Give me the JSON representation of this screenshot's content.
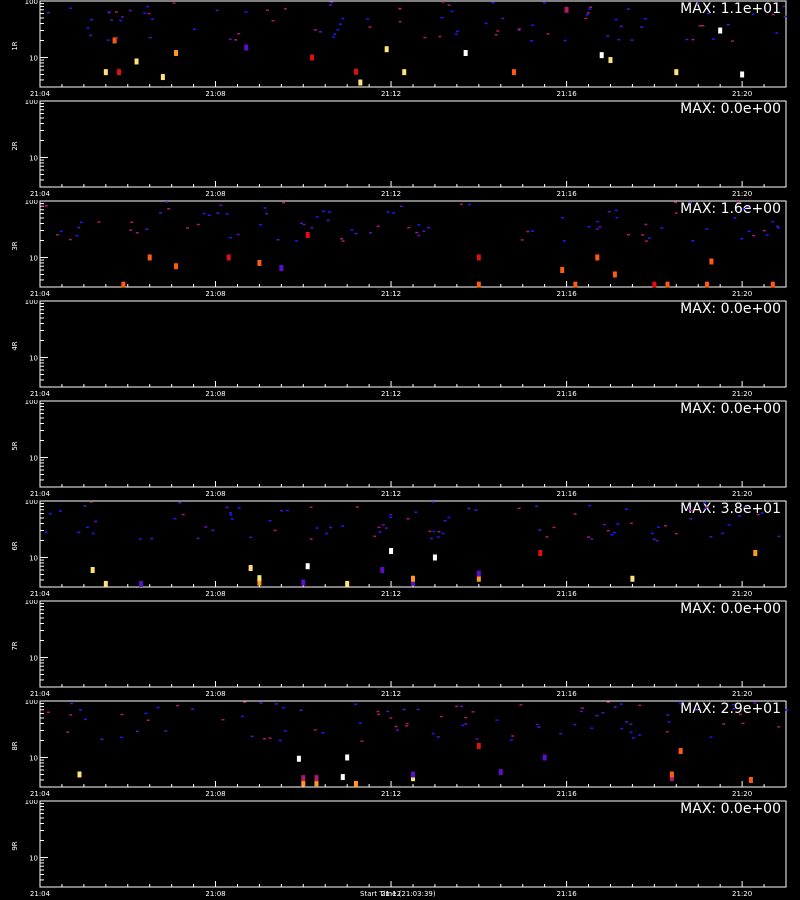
{
  "colors": {
    "background": "#000000",
    "axes": "#ffffff",
    "scale": [
      "#1a1aff",
      "#5a10c8",
      "#b0186a",
      "#e01010",
      "#ff5a10",
      "#ff9a1a",
      "#ffe27a",
      "#ffffff"
    ]
  },
  "chart_data": [
    {
      "type": "heatmap",
      "ylabel": "1R",
      "max_label": "MAX: 1.1e+01",
      "x_ticks": [
        "21:04",
        "21:08",
        "21:12",
        "21:16",
        "21:20"
      ],
      "x_range": [
        "21:04",
        "21:21"
      ],
      "y_scale": "log",
      "y_ticks": [
        "10",
        "100"
      ],
      "y_range": [
        3,
        100
      ],
      "points": [
        {
          "t": "21:05.5",
          "y": 5.5,
          "level": 6
        },
        {
          "t": "21:05.8",
          "y": 5.5,
          "level": 3
        },
        {
          "t": "21:06.8",
          "y": 4.5,
          "level": 6
        },
        {
          "t": "21:11.3",
          "y": 3.6,
          "level": 6
        },
        {
          "t": "21:11.2",
          "y": 5.6,
          "level": 3
        },
        {
          "t": "21:12.3",
          "y": 5.5,
          "level": 6
        },
        {
          "t": "21:14.8",
          "y": 5.5,
          "level": 4
        },
        {
          "t": "21:18.5",
          "y": 5.5,
          "level": 6
        },
        {
          "t": "21:20.0",
          "y": 5,
          "level": 7
        },
        {
          "t": "21:06.2",
          "y": 8.5,
          "level": 6
        },
        {
          "t": "21:07.1",
          "y": 12,
          "level": 5
        },
        {
          "t": "21:10.2",
          "y": 10,
          "level": 3
        },
        {
          "t": "21:17.0",
          "y": 9,
          "level": 6
        },
        {
          "t": "21:16.8",
          "y": 11,
          "level": 7
        },
        {
          "t": "21:05.7",
          "y": 20,
          "level": 4
        },
        {
          "t": "21:08.7",
          "y": 15,
          "level": 1
        },
        {
          "t": "21:11.9",
          "y": 14,
          "level": 6
        },
        {
          "t": "21:13.7",
          "y": 12,
          "level": 7
        },
        {
          "t": "21:19.5",
          "y": 30,
          "level": 7
        },
        {
          "t": "21:16.0",
          "y": 70,
          "level": 2
        }
      ]
    },
    {
      "type": "heatmap",
      "ylabel": "2R",
      "max_label": "MAX: 0.0e+00",
      "x_ticks": [
        "21:04",
        "21:08",
        "21:12",
        "21:16",
        "21:20"
      ],
      "x_range": [
        "21:04",
        "21:21"
      ],
      "y_scale": "log",
      "y_ticks": [
        "10",
        "100"
      ],
      "y_range": [
        3,
        100
      ],
      "points": []
    },
    {
      "type": "heatmap",
      "ylabel": "3R",
      "max_label": "MAX: 1.6e+00",
      "x_ticks": [
        "21:04",
        "21:08",
        "21:12",
        "21:16",
        "21:20"
      ],
      "x_range": [
        "21:04",
        "21:21"
      ],
      "y_scale": "log",
      "y_ticks": [
        "10",
        "100"
      ],
      "y_range": [
        3,
        100
      ],
      "points": [
        {
          "t": "21:05.9",
          "y": 3.3,
          "level": 4
        },
        {
          "t": "21:06.5",
          "y": 10,
          "level": 4
        },
        {
          "t": "21:07.1",
          "y": 7,
          "level": 4
        },
        {
          "t": "21:08.3",
          "y": 10,
          "level": 3
        },
        {
          "t": "21:09.0",
          "y": 8,
          "level": 4
        },
        {
          "t": "21:09.5",
          "y": 6.5,
          "level": 1
        },
        {
          "t": "21:14.0",
          "y": 3.3,
          "level": 4
        },
        {
          "t": "21:14.0",
          "y": 10,
          "level": 3
        },
        {
          "t": "21:15.9",
          "y": 6,
          "level": 4
        },
        {
          "t": "21:16.2",
          "y": 3.3,
          "level": 4
        },
        {
          "t": "21:16.7",
          "y": 10,
          "level": 4
        },
        {
          "t": "21:17.1",
          "y": 5,
          "level": 4
        },
        {
          "t": "21:18.0",
          "y": 3.3,
          "level": 3
        },
        {
          "t": "21:18.3",
          "y": 3.3,
          "level": 4
        },
        {
          "t": "21:19.2",
          "y": 3.3,
          "level": 4
        },
        {
          "t": "21:19.3",
          "y": 8.5,
          "level": 4
        },
        {
          "t": "21:20.7",
          "y": 3.3,
          "level": 4
        },
        {
          "t": "21:10.1",
          "y": 25,
          "level": 3
        }
      ]
    },
    {
      "type": "heatmap",
      "ylabel": "4R",
      "max_label": "MAX: 0.0e+00",
      "x_ticks": [
        "21:04",
        "21:08",
        "21:12",
        "21:16",
        "21:20"
      ],
      "x_range": [
        "21:04",
        "21:21"
      ],
      "y_scale": "log",
      "y_ticks": [
        "10",
        "100"
      ],
      "y_range": [
        3,
        100
      ],
      "points": []
    },
    {
      "type": "heatmap",
      "ylabel": "5R",
      "max_label": "MAX: 0.0e+00",
      "x_ticks": [
        "21:04",
        "21:08",
        "21:12",
        "21:16",
        "21:20"
      ],
      "x_range": [
        "21:04",
        "21:21"
      ],
      "y_scale": "log",
      "y_ticks": [
        "10",
        "100"
      ],
      "y_range": [
        3,
        100
      ],
      "points": []
    },
    {
      "type": "heatmap",
      "ylabel": "6R",
      "max_label": "MAX: 3.8e+01",
      "x_ticks": [
        "21:04",
        "21:08",
        "21:12",
        "21:16",
        "21:20"
      ],
      "x_range": [
        "21:04",
        "21:21"
      ],
      "y_scale": "log",
      "y_ticks": [
        "10",
        "100"
      ],
      "y_range": [
        3,
        100
      ],
      "points": [
        {
          "t": "21:05.5",
          "y": 3.4,
          "level": 6
        },
        {
          "t": "21:06.3",
          "y": 3.4,
          "level": 1
        },
        {
          "t": "21:09.0",
          "y": 3.6,
          "level": 5
        },
        {
          "t": "21:09.0",
          "y": 4.3,
          "level": 6
        },
        {
          "t": "21:10.0",
          "y": 3.6,
          "level": 1
        },
        {
          "t": "21:11.0",
          "y": 3.4,
          "level": 6
        },
        {
          "t": "21:12.5",
          "y": 3.6,
          "level": 1
        },
        {
          "t": "21:12.5",
          "y": 4.2,
          "level": 5
        },
        {
          "t": "21:14.0",
          "y": 4.2,
          "level": 5
        },
        {
          "t": "21:14.0",
          "y": 5.2,
          "level": 1
        },
        {
          "t": "21:17.5",
          "y": 4.2,
          "level": 6
        },
        {
          "t": "21:05.2",
          "y": 6,
          "level": 6
        },
        {
          "t": "21:08.8",
          "y": 6.5,
          "level": 6
        },
        {
          "t": "21:10.1",
          "y": 7,
          "level": 7
        },
        {
          "t": "21:11.8",
          "y": 6,
          "level": 1
        },
        {
          "t": "21:13.0",
          "y": 10,
          "level": 7
        },
        {
          "t": "21:15.4",
          "y": 12,
          "level": 3
        },
        {
          "t": "21:20.3",
          "y": 12,
          "level": 5
        },
        {
          "t": "21:12.0",
          "y": 13,
          "level": 7
        }
      ]
    },
    {
      "type": "heatmap",
      "ylabel": "7R",
      "max_label": "MAX: 0.0e+00",
      "x_ticks": [
        "21:04",
        "21:08",
        "21:12",
        "21:16",
        "21:20"
      ],
      "x_range": [
        "21:04",
        "21:21"
      ],
      "y_scale": "log",
      "y_ticks": [
        "10",
        "100"
      ],
      "y_range": [
        3,
        100
      ],
      "points": []
    },
    {
      "type": "heatmap",
      "ylabel": "8R",
      "max_label": "MAX: 2.9e+01",
      "x_ticks": [
        "21:04",
        "21:08",
        "21:12",
        "21:16",
        "21:20"
      ],
      "x_range": [
        "21:04",
        "21:21"
      ],
      "y_scale": "log",
      "y_ticks": [
        "10",
        "100"
      ],
      "y_range": [
        3,
        100
      ],
      "points": [
        {
          "t": "21:04.9",
          "y": 5,
          "level": 6
        },
        {
          "t": "21:10.0",
          "y": 3.5,
          "level": 5
        },
        {
          "t": "21:10.0",
          "y": 4.3,
          "level": 2
        },
        {
          "t": "21:10.3",
          "y": 3.5,
          "level": 5
        },
        {
          "t": "21:10.3",
          "y": 4.3,
          "level": 2
        },
        {
          "t": "21:10.9",
          "y": 4.5,
          "level": 7
        },
        {
          "t": "21:11.2",
          "y": 3.4,
          "level": 5
        },
        {
          "t": "21:12.5",
          "y": 4.3,
          "level": 6
        },
        {
          "t": "21:12.5",
          "y": 5,
          "level": 1
        },
        {
          "t": "21:14.5",
          "y": 5.5,
          "level": 1
        },
        {
          "t": "21:18.4",
          "y": 4.3,
          "level": 2
        },
        {
          "t": "21:18.4",
          "y": 5,
          "level": 4
        },
        {
          "t": "21:20.2",
          "y": 4,
          "level": 4
        },
        {
          "t": "21:09.9",
          "y": 9.5,
          "level": 7
        },
        {
          "t": "21:11.0",
          "y": 10,
          "level": 7
        },
        {
          "t": "21:14.0",
          "y": 16,
          "level": 3
        },
        {
          "t": "21:15.5",
          "y": 10,
          "level": 1
        },
        {
          "t": "21:18.6",
          "y": 13,
          "level": 4
        }
      ]
    },
    {
      "type": "heatmap",
      "ylabel": "9R",
      "max_label": "MAX: 0.0e+00",
      "x_ticks": [
        "21:04",
        "21:08",
        "21:12",
        "21:16",
        "21:20"
      ],
      "x_range": [
        "21:04",
        "21:21"
      ],
      "y_scale": "log",
      "y_ticks": [
        "10",
        "100"
      ],
      "y_range": [
        3,
        100
      ],
      "points": []
    }
  ],
  "footer": {
    "text": "Start Time (21:03:39)"
  }
}
